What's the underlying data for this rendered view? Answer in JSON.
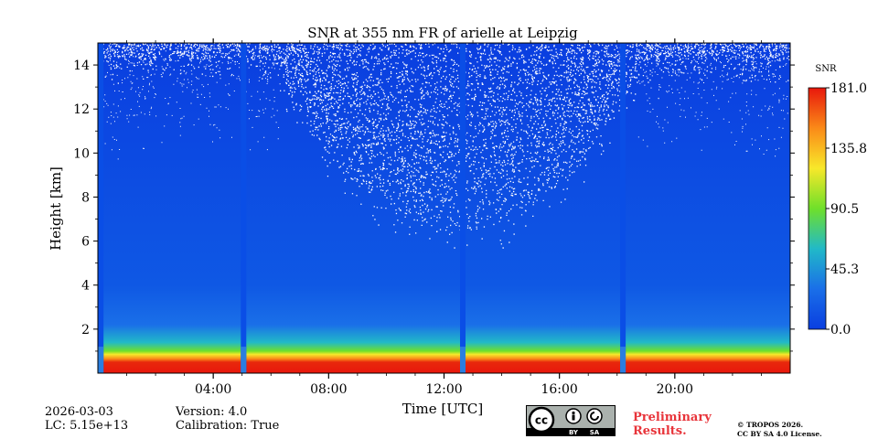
{
  "chart_data": {
    "type": "heatmap",
    "title": "SNR at 355 nm FR of arielle at Leipzig",
    "xlabel": "Time [UTC]",
    "ylabel": "Height [km]",
    "x_range_hours": [
      0,
      24
    ],
    "y_range_km": [
      0,
      15
    ],
    "x_ticks": [
      {
        "value": 4,
        "label": "04:00"
      },
      {
        "value": 8,
        "label": "08:00"
      },
      {
        "value": 12,
        "label": "12:00"
      },
      {
        "value": 16,
        "label": "16:00"
      },
      {
        "value": 20,
        "label": "20:00"
      }
    ],
    "y_ticks": [
      {
        "value": 2,
        "label": "2"
      },
      {
        "value": 4,
        "label": "4"
      },
      {
        "value": 6,
        "label": "6"
      },
      {
        "value": 8,
        "label": "8"
      },
      {
        "value": 10,
        "label": "10"
      },
      {
        "value": 12,
        "label": "12"
      },
      {
        "value": 14,
        "label": "14"
      }
    ],
    "colorbar": {
      "label": "SNR",
      "min": 0.0,
      "max": 181.0,
      "ticks": [
        "0.0",
        "45.3",
        "90.5",
        "135.8",
        "181.0"
      ],
      "colormap": [
        "#0a3ee0",
        "#1a6fe8",
        "#21b9c8",
        "#6fe02a",
        "#f8e82a",
        "#fa8a18",
        "#e8180c"
      ]
    },
    "data_gaps_hours": [
      0.1,
      5.05,
      12.65,
      18.2
    ],
    "noise_boundary_km": {
      "night_level": 13.5,
      "midday_minimum": 6.5,
      "midday_time": 12.5
    },
    "surface_high_snr_layer_km": [
      0.05,
      1.2
    ]
  },
  "footer": {
    "date": "2026-03-03",
    "lc": "LC: 5.15e+13",
    "version": "Version: 4.0",
    "calibration": "Calibration: True",
    "cc_text": "cc",
    "by_text": "BY",
    "sa_text": "SA",
    "prelim_line1": "Preliminary",
    "prelim_line2": "Results.",
    "copyright_line1": "© TROPOS 2026.",
    "copyright_line2": "CC BY SA 4.0 License."
  }
}
